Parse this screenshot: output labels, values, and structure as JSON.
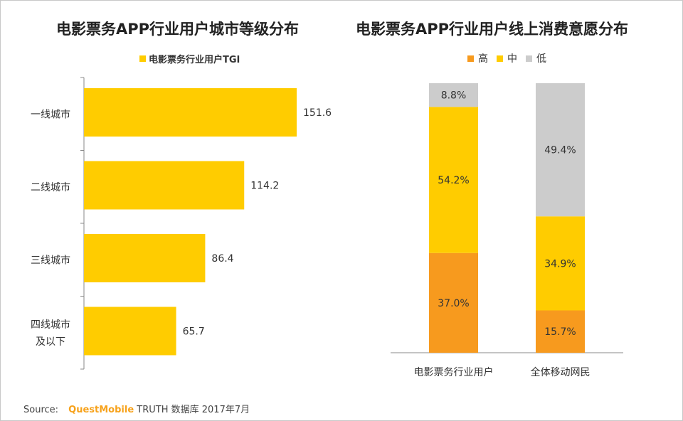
{
  "chart_data": [
    {
      "type": "bar",
      "orientation": "horizontal",
      "title": "电影票务APP行业用户城市等级分布",
      "categories": [
        "一线城市",
        "二线城市",
        "三线城市",
        "四线城市及以下"
      ],
      "category_lines": [
        [
          "一线城市"
        ],
        [
          "二线城市"
        ],
        [
          "三线城市"
        ],
        [
          "四线城市",
          "及以下"
        ]
      ],
      "series": [
        {
          "name": "电影票务行业用户TGI",
          "values": [
            151.6,
            114.2,
            86.4,
            65.7
          ],
          "labels": [
            "151.6",
            "114.2",
            "86.4",
            "65.7"
          ],
          "color": "#ffcc00"
        }
      ],
      "legend": "top",
      "grid": false
    },
    {
      "type": "bar",
      "stacked": true,
      "title": "电影票务APP行业用户线上消费意愿分布",
      "categories": [
        "电影票务行业用户",
        "全体移动网民"
      ],
      "series": [
        {
          "name": "高",
          "values": [
            37.0,
            15.7
          ],
          "labels": [
            "37.0%",
            "15.7%"
          ],
          "color": "#f79a1e"
        },
        {
          "name": "中",
          "values": [
            54.2,
            34.9
          ],
          "labels": [
            "54.2%",
            "34.9%"
          ],
          "color": "#ffcc00"
        },
        {
          "name": "低",
          "values": [
            8.8,
            49.4
          ],
          "labels": [
            "8.8%",
            "49.4%"
          ],
          "color": "#cccccc"
        }
      ],
      "ylim": [
        0,
        100
      ],
      "legend": "top",
      "grid": false
    }
  ],
  "source": {
    "label": "Source:",
    "brand": "QuestMobile",
    "rest": "TRUTH 数据库 2017年7月"
  },
  "colors": {
    "brand": "#f7a21b",
    "text": "#333333",
    "axis": "#888888"
  }
}
